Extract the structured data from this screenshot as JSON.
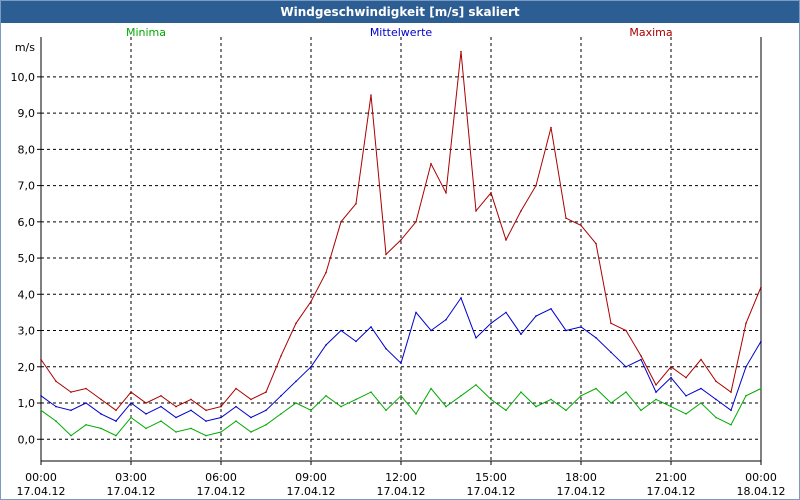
{
  "window": {
    "title": "Windgeschwindigkeit [m/s] skaliert"
  },
  "chart_data": {
    "type": "line",
    "title": "Windgeschwindigkeit [m/s] skaliert",
    "ylabel": "m/s",
    "xlabel": "",
    "ylim": [
      -0.6,
      11.1
    ],
    "xlim": [
      0,
      24
    ],
    "grid": true,
    "legend_position": "top",
    "y_ticks": [
      0,
      1,
      2,
      3,
      4,
      5,
      6,
      7,
      8,
      9,
      10
    ],
    "y_tick_labels": [
      "0,0",
      "1,0",
      "2,0",
      "3,0",
      "4,0",
      "5,0",
      "6,0",
      "7,0",
      "8,0",
      "9,0",
      "10,0"
    ],
    "x_ticks": [
      0,
      3,
      6,
      9,
      12,
      15,
      18,
      21,
      24
    ],
    "x_tick_labels": [
      {
        "time": "00:00",
        "date": "17.04.12"
      },
      {
        "time": "03:00",
        "date": "17.04.12"
      },
      {
        "time": "06:00",
        "date": "17.04.12"
      },
      {
        "time": "09:00",
        "date": "17.04.12"
      },
      {
        "time": "12:00",
        "date": "17.04.12"
      },
      {
        "time": "15:00",
        "date": "17.04.12"
      },
      {
        "time": "18:00",
        "date": "17.04.12"
      },
      {
        "time": "21:00",
        "date": "17.04.12"
      },
      {
        "time": "00:00",
        "date": "18.04.12"
      }
    ],
    "x": [
      0,
      0.5,
      1,
      1.5,
      2,
      2.5,
      3,
      3.5,
      4,
      4.5,
      5,
      5.5,
      6,
      6.5,
      7,
      7.5,
      8,
      8.5,
      9,
      9.5,
      10,
      10.5,
      11,
      11.5,
      12,
      12.5,
      13,
      13.5,
      14,
      14.5,
      15,
      15.5,
      16,
      16.5,
      17,
      17.5,
      18,
      18.5,
      19,
      19.5,
      20,
      20.5,
      21,
      21.5,
      22,
      22.5,
      23,
      23.5,
      24
    ],
    "series": [
      {
        "name": "Minima",
        "color": "#00aa00",
        "values": [
          0.8,
          0.5,
          0.1,
          0.4,
          0.3,
          0.1,
          0.6,
          0.3,
          0.5,
          0.2,
          0.3,
          0.1,
          0.2,
          0.5,
          0.2,
          0.4,
          0.7,
          1.0,
          0.8,
          1.2,
          0.9,
          1.1,
          1.3,
          0.8,
          1.2,
          0.7,
          1.4,
          0.9,
          1.2,
          1.5,
          1.1,
          0.8,
          1.3,
          0.9,
          1.1,
          0.8,
          1.2,
          1.4,
          1.0,
          1.3,
          0.8,
          1.1,
          0.9,
          0.7,
          1.0,
          0.6,
          0.4,
          1.2,
          1.4
        ]
      },
      {
        "name": "Mittelwerte",
        "color": "#0000cc",
        "values": [
          1.2,
          0.9,
          0.8,
          1.0,
          0.7,
          0.5,
          1.0,
          0.7,
          0.9,
          0.6,
          0.8,
          0.5,
          0.6,
          0.9,
          0.6,
          0.8,
          1.2,
          1.6,
          2.0,
          2.6,
          3.0,
          2.7,
          3.1,
          2.5,
          2.1,
          3.5,
          3.0,
          3.3,
          3.9,
          2.8,
          3.2,
          3.5,
          2.9,
          3.4,
          3.6,
          3.0,
          3.1,
          2.8,
          2.4,
          2.0,
          2.2,
          1.3,
          1.7,
          1.2,
          1.4,
          1.1,
          0.8,
          2.0,
          2.7
        ]
      },
      {
        "name": "Maxima",
        "color": "#aa0000",
        "values": [
          2.2,
          1.6,
          1.3,
          1.4,
          1.1,
          0.8,
          1.3,
          1.0,
          1.2,
          0.9,
          1.1,
          0.8,
          0.9,
          1.4,
          1.1,
          1.3,
          2.3,
          3.2,
          3.8,
          4.6,
          6.0,
          6.5,
          9.5,
          5.1,
          5.5,
          6.0,
          7.6,
          6.8,
          10.7,
          6.3,
          6.8,
          5.5,
          6.3,
          7.0,
          8.6,
          6.1,
          5.9,
          5.4,
          3.2,
          3.0,
          2.3,
          1.5,
          2.0,
          1.7,
          2.2,
          1.6,
          1.3,
          3.2,
          4.2
        ]
      }
    ]
  }
}
